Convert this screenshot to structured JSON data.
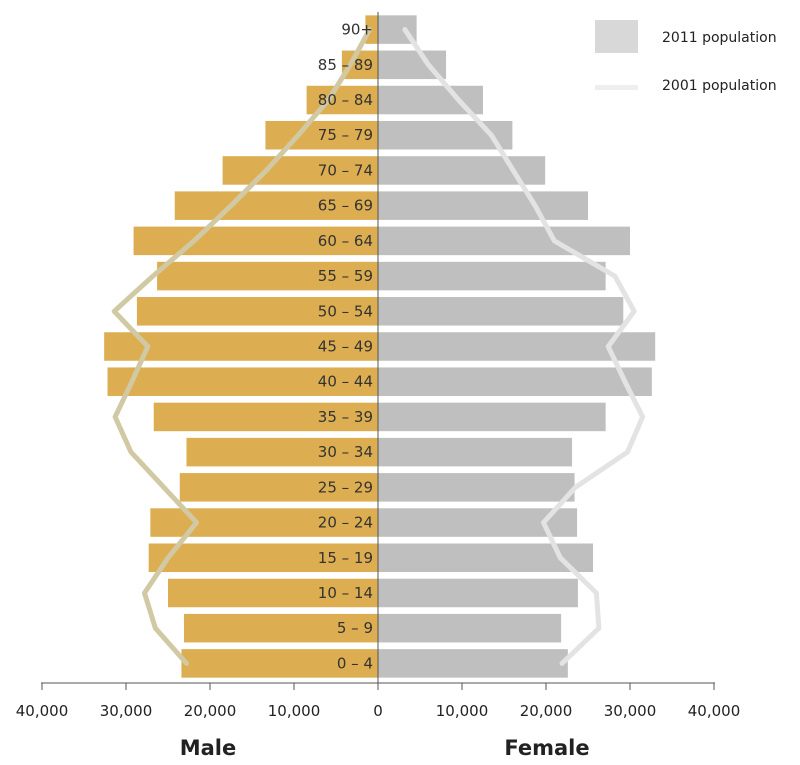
{
  "chart_data": {
    "type": "bar",
    "subtype": "population-pyramid",
    "categories": [
      "0 – 4",
      "5 – 9",
      "10 – 14",
      "15 – 19",
      "20 – 24",
      "25 – 29",
      "30 – 34",
      "35 – 39",
      "40 – 44",
      "45 – 49",
      "50 – 54",
      "55 – 59",
      "60 – 64",
      "65 – 69",
      "70 – 74",
      "75 – 79",
      "80 – 84",
      "85 – 89",
      "90+"
    ],
    "series": [
      {
        "name": "2011 population",
        "kind": "bars",
        "male": [
          23400,
          23100,
          25000,
          27300,
          27100,
          23600,
          22800,
          26700,
          32200,
          32600,
          28700,
          26300,
          29100,
          24200,
          18500,
          13400,
          8500,
          4300,
          1500
        ],
        "female": [
          22600,
          21800,
          23800,
          25600,
          23700,
          23400,
          23100,
          27100,
          32600,
          33000,
          29200,
          27100,
          30000,
          25000,
          19900,
          16000,
          12500,
          8100,
          4600
        ]
      },
      {
        "name": "2001 population",
        "kind": "lines",
        "male": [
          22800,
          26500,
          27800,
          25000,
          21600,
          25500,
          29400,
          31300,
          29300,
          27400,
          31400,
          26800,
          21900,
          17500,
          13300,
          9500,
          5900,
          3300,
          1000
        ],
        "female": [
          21900,
          26300,
          26000,
          21700,
          19700,
          23500,
          29700,
          31500,
          29400,
          27400,
          30500,
          28200,
          21000,
          18700,
          16100,
          13500,
          9600,
          6000,
          3200
        ]
      }
    ],
    "xlabel_left": "Male",
    "xlabel_right": "Female",
    "xlim": [
      -40000,
      40000
    ],
    "x_ticks": [
      "40,000",
      "30,000",
      "20,000",
      "10,000",
      "0",
      "10,000",
      "20,000",
      "30,000",
      "40,000"
    ],
    "legend": {
      "placement": "top-right",
      "items": [
        {
          "label": "2011 population",
          "swatch": "box"
        },
        {
          "label": "2001 population",
          "swatch": "line"
        }
      ]
    },
    "colors": {
      "male_bar": "#dcae51",
      "female_bar": "#bfbfbf",
      "male_line": "#d1c9a3",
      "female_line": "#e3e3e3",
      "legend_box": "#d8d8d8",
      "legend_line": "#eeeeee",
      "axis": "#555555"
    },
    "grid": false
  }
}
